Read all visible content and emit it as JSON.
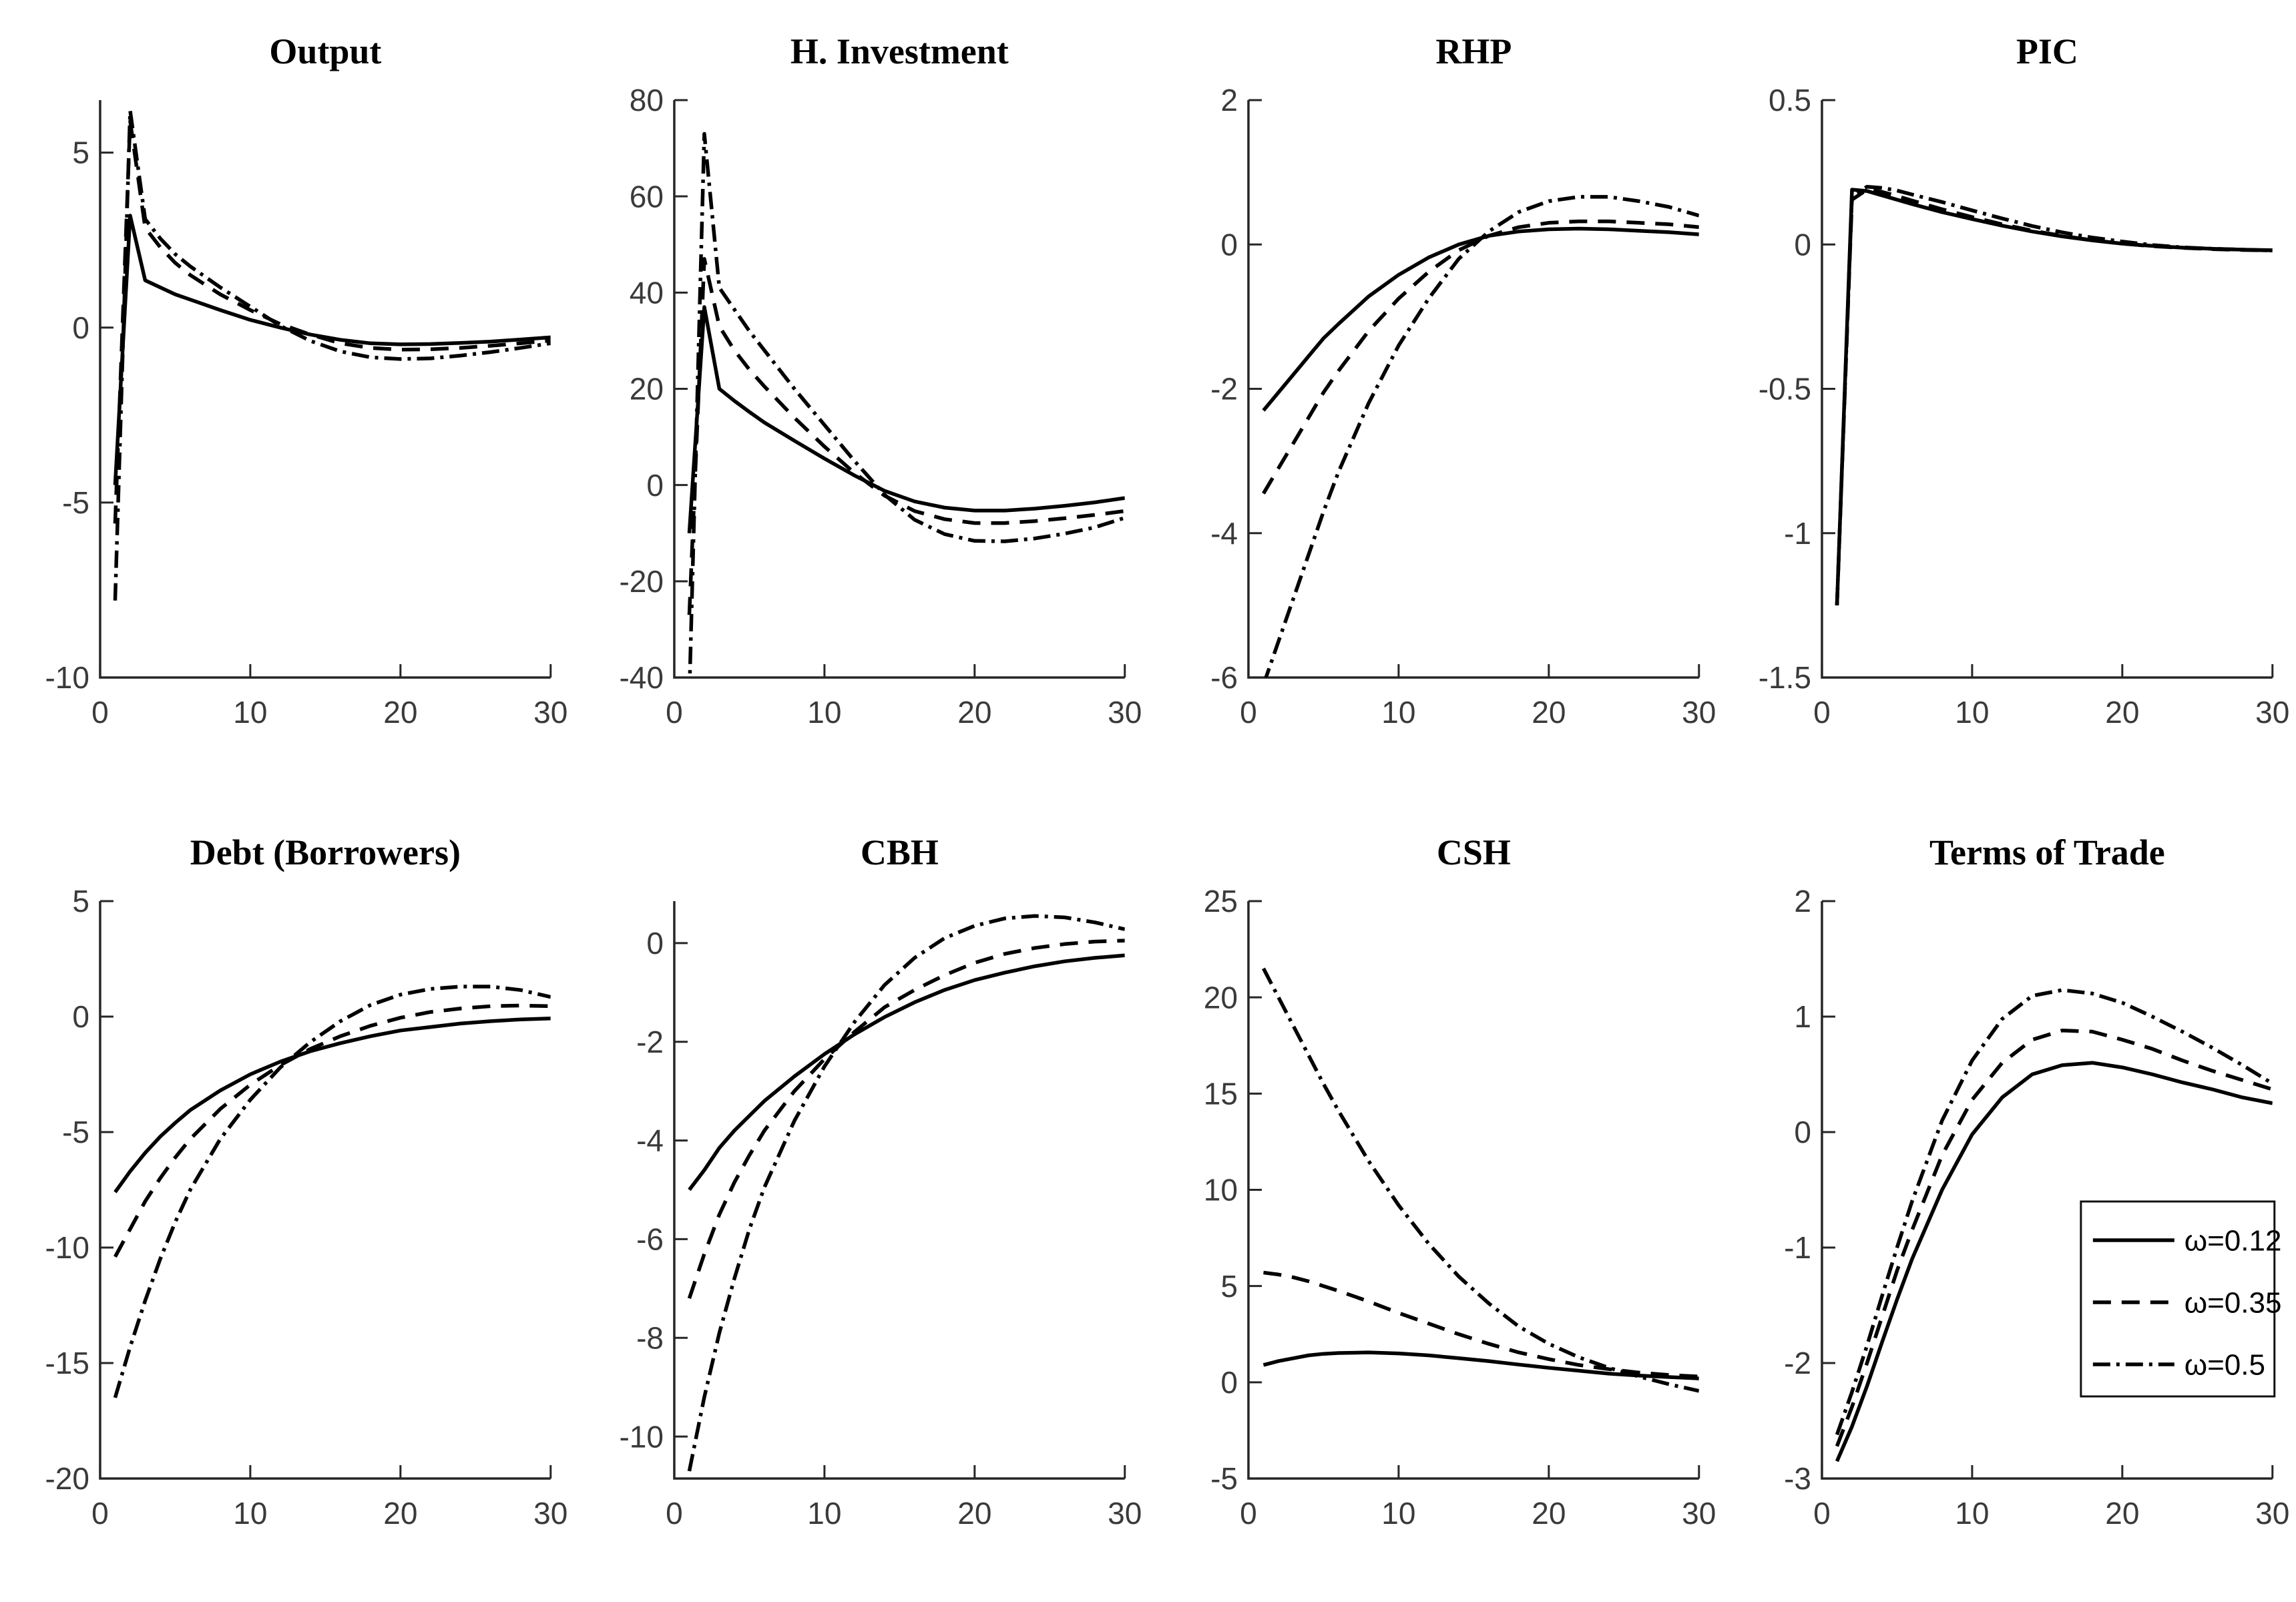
{
  "figure": {
    "background": "#ffffff",
    "line_color": "#000000",
    "axis_color": "#262626",
    "tick_label_color": "#3a3a3a",
    "rows": 2,
    "cols": 4
  },
  "legend": {
    "position": "bottom-right-of-terms-of-trade",
    "entries": [
      {
        "label": "ω=0.12",
        "style": "solid"
      },
      {
        "label": "ω=0.35",
        "style": "dashed"
      },
      {
        "label": "ω=0.5",
        "style": "dashdot"
      }
    ]
  },
  "chart_data": [
    {
      "id": "output",
      "type": "line",
      "title": "Output",
      "xlim": [
        0,
        30
      ],
      "xticks": [
        0,
        10,
        20,
        30
      ],
      "ylim": [
        -10,
        6.5
      ],
      "yticks": [
        5,
        0,
        -5,
        -10
      ],
      "x": [
        1,
        2,
        3,
        4,
        5,
        6,
        8,
        10,
        12,
        14,
        16,
        18,
        20,
        22,
        24,
        26,
        28,
        30
      ],
      "series": [
        {
          "name": "ω=0.12",
          "style": "solid",
          "values": [
            -4.5,
            3.2,
            1.35,
            1.15,
            0.95,
            0.8,
            0.5,
            0.22,
            0.0,
            -0.2,
            -0.35,
            -0.45,
            -0.48,
            -0.47,
            -0.44,
            -0.4,
            -0.34,
            -0.28
          ]
        },
        {
          "name": "ω=0.35",
          "style": "dashed",
          "values": [
            -5.6,
            5.9,
            2.85,
            2.3,
            1.85,
            1.5,
            0.95,
            0.5,
            0.1,
            -0.2,
            -0.45,
            -0.58,
            -0.63,
            -0.62,
            -0.58,
            -0.52,
            -0.45,
            -0.37
          ]
        },
        {
          "name": "ω=0.5",
          "style": "dashdot",
          "values": [
            -7.8,
            6.2,
            3.1,
            2.55,
            2.1,
            1.75,
            1.15,
            0.6,
            0.05,
            -0.38,
            -0.68,
            -0.85,
            -0.9,
            -0.88,
            -0.8,
            -0.7,
            -0.58,
            -0.45
          ]
        }
      ]
    },
    {
      "id": "h-investment",
      "type": "line",
      "title": "H. Investment",
      "xlim": [
        0,
        30
      ],
      "xticks": [
        0,
        10,
        20,
        30
      ],
      "ylim": [
        -40,
        80
      ],
      "yticks": [
        80,
        60,
        40,
        20,
        0,
        -20,
        -40
      ],
      "x": [
        1,
        2,
        3,
        4,
        5,
        6,
        8,
        10,
        12,
        14,
        16,
        18,
        20,
        22,
        24,
        26,
        28,
        30
      ],
      "series": [
        {
          "name": "ω=0.12",
          "style": "solid",
          "values": [
            -10,
            37,
            20,
            17.5,
            15.2,
            13,
            9.2,
            5.5,
            2,
            -1.2,
            -3.4,
            -4.7,
            -5.3,
            -5.3,
            -4.9,
            -4.3,
            -3.6,
            -2.7
          ]
        },
        {
          "name": "ω=0.35",
          "style": "dashed",
          "values": [
            -27,
            47,
            33,
            28,
            24,
            20.5,
            14,
            8,
            2.5,
            -2.2,
            -5.4,
            -7.1,
            -7.9,
            -7.9,
            -7.5,
            -6.9,
            -6.2,
            -5.4
          ]
        },
        {
          "name": "ω=0.5",
          "style": "dashdot",
          "values": [
            -44,
            73,
            41,
            36.5,
            32,
            28,
            20,
            12.5,
            5,
            -2,
            -7.2,
            -10.2,
            -11.6,
            -11.7,
            -11.1,
            -10.1,
            -8.8,
            -6.8
          ]
        }
      ]
    },
    {
      "id": "rhp",
      "type": "line",
      "title": "RHP",
      "xlim": [
        0,
        30
      ],
      "xticks": [
        0,
        10,
        20,
        30
      ],
      "ylim": [
        -6,
        2
      ],
      "yticks": [
        2,
        0,
        -2,
        -4,
        -6
      ],
      "x": [
        1,
        2,
        3,
        4,
        5,
        6,
        8,
        10,
        12,
        14,
        16,
        18,
        20,
        22,
        24,
        26,
        28,
        30
      ],
      "series": [
        {
          "name": "ω=0.12",
          "style": "solid",
          "values": [
            -2.3,
            -2.05,
            -1.8,
            -1.55,
            -1.3,
            -1.1,
            -0.72,
            -0.42,
            -0.18,
            0.0,
            0.12,
            0.18,
            0.21,
            0.22,
            0.21,
            0.19,
            0.17,
            0.14
          ]
        },
        {
          "name": "ω=0.35",
          "style": "dashed",
          "values": [
            -3.45,
            -3.1,
            -2.75,
            -2.4,
            -2.05,
            -1.75,
            -1.2,
            -0.75,
            -0.38,
            -0.08,
            0.12,
            0.24,
            0.3,
            0.32,
            0.32,
            0.3,
            0.28,
            0.24
          ]
        },
        {
          "name": "ω=0.5",
          "style": "dashdot",
          "values": [
            -6.1,
            -5.5,
            -4.9,
            -4.3,
            -3.7,
            -3.15,
            -2.2,
            -1.4,
            -0.75,
            -0.2,
            0.18,
            0.45,
            0.6,
            0.66,
            0.66,
            0.6,
            0.52,
            0.4
          ]
        }
      ]
    },
    {
      "id": "pic",
      "type": "line",
      "title": "PIC",
      "xlim": [
        0,
        30
      ],
      "xticks": [
        0,
        10,
        20,
        30
      ],
      "ylim": [
        -1.5,
        0.5
      ],
      "yticks": [
        0.5,
        0,
        -0.5,
        -1,
        -1.5
      ],
      "x": [
        1,
        2,
        3,
        4,
        5,
        6,
        8,
        10,
        12,
        14,
        16,
        18,
        20,
        22,
        24,
        26,
        28,
        30
      ],
      "series": [
        {
          "name": "ω=0.12",
          "style": "solid",
          "values": [
            -1.25,
            0.19,
            0.185,
            0.17,
            0.155,
            0.14,
            0.112,
            0.088,
            0.065,
            0.045,
            0.028,
            0.014,
            0.003,
            -0.005,
            -0.011,
            -0.015,
            -0.018,
            -0.02
          ]
        },
        {
          "name": "ω=0.35",
          "style": "dashed",
          "values": [
            -1.25,
            0.155,
            0.19,
            0.182,
            0.168,
            0.152,
            0.122,
            0.095,
            0.07,
            0.048,
            0.03,
            0.015,
            0.003,
            -0.006,
            -0.012,
            -0.016,
            -0.019,
            -0.021
          ]
        },
        {
          "name": "ω=0.5",
          "style": "dashdot",
          "values": [
            -1.25,
            0.17,
            0.2,
            0.196,
            0.187,
            0.173,
            0.147,
            0.118,
            0.09,
            0.064,
            0.042,
            0.024,
            0.01,
            -0.002,
            -0.01,
            -0.015,
            -0.018,
            -0.021
          ]
        }
      ]
    },
    {
      "id": "debt-borrowers",
      "type": "line",
      "title": "Debt (Borrowers)",
      "xlim": [
        0,
        30
      ],
      "xticks": [
        0,
        10,
        20,
        30
      ],
      "ylim": [
        -20,
        5
      ],
      "yticks": [
        5,
        0,
        -5,
        -10,
        -15,
        -20
      ],
      "x": [
        1,
        2,
        3,
        4,
        5,
        6,
        8,
        10,
        12,
        14,
        16,
        18,
        20,
        22,
        24,
        26,
        28,
        30
      ],
      "series": [
        {
          "name": "ω=0.12",
          "style": "solid",
          "values": [
            -7.6,
            -6.7,
            -5.9,
            -5.2,
            -4.6,
            -4.05,
            -3.2,
            -2.5,
            -1.95,
            -1.5,
            -1.15,
            -0.85,
            -0.6,
            -0.45,
            -0.3,
            -0.2,
            -0.12,
            -0.08
          ]
        },
        {
          "name": "ω=0.35",
          "style": "dashed",
          "values": [
            -10.4,
            -9.2,
            -8.0,
            -7.0,
            -6.1,
            -5.3,
            -4.0,
            -2.95,
            -2.1,
            -1.4,
            -0.85,
            -0.4,
            -0.05,
            0.2,
            0.35,
            0.45,
            0.48,
            0.45
          ]
        },
        {
          "name": "ω=0.5",
          "style": "dashdot",
          "values": [
            -16.5,
            -14.3,
            -12.3,
            -10.5,
            -8.9,
            -7.5,
            -5.3,
            -3.6,
            -2.2,
            -1.1,
            -0.2,
            0.5,
            0.95,
            1.2,
            1.3,
            1.3,
            1.15,
            0.85
          ]
        }
      ]
    },
    {
      "id": "cbh",
      "type": "line",
      "title": "CBH",
      "xlim": [
        0,
        30
      ],
      "xticks": [
        0,
        10,
        20,
        30
      ],
      "ylim": [
        -10.85,
        0.85
      ],
      "yticks": [
        0,
        -2,
        -4,
        -6,
        -8,
        -10
      ],
      "x": [
        1,
        2,
        3,
        4,
        5,
        6,
        8,
        10,
        12,
        14,
        16,
        18,
        20,
        22,
        24,
        26,
        28,
        30
      ],
      "series": [
        {
          "name": "ω=0.12",
          "style": "solid",
          "values": [
            -5.0,
            -4.6,
            -4.15,
            -3.8,
            -3.5,
            -3.2,
            -2.7,
            -2.25,
            -1.85,
            -1.5,
            -1.2,
            -0.95,
            -0.75,
            -0.6,
            -0.47,
            -0.37,
            -0.3,
            -0.25
          ]
        },
        {
          "name": "ω=0.35",
          "style": "dashed",
          "values": [
            -7.2,
            -6.3,
            -5.5,
            -4.85,
            -4.3,
            -3.8,
            -3.0,
            -2.35,
            -1.8,
            -1.3,
            -0.95,
            -0.65,
            -0.4,
            -0.22,
            -0.1,
            -0.02,
            0.03,
            0.05
          ]
        },
        {
          "name": "ω=0.5",
          "style": "dashdot",
          "values": [
            -10.7,
            -9.2,
            -7.9,
            -6.8,
            -5.8,
            -4.95,
            -3.6,
            -2.5,
            -1.6,
            -0.85,
            -0.3,
            0.1,
            0.35,
            0.5,
            0.55,
            0.52,
            0.42,
            0.28
          ]
        }
      ]
    },
    {
      "id": "csh",
      "type": "line",
      "title": "CSH",
      "xlim": [
        0,
        30
      ],
      "xticks": [
        0,
        10,
        20,
        30
      ],
      "ylim": [
        -5,
        25
      ],
      "yticks": [
        25,
        20,
        15,
        10,
        5,
        0,
        -5
      ],
      "x": [
        1,
        2,
        3,
        4,
        5,
        6,
        8,
        10,
        12,
        14,
        16,
        18,
        20,
        22,
        24,
        26,
        28,
        30
      ],
      "series": [
        {
          "name": "ω=0.12",
          "style": "solid",
          "values": [
            0.9,
            1.1,
            1.25,
            1.4,
            1.48,
            1.52,
            1.55,
            1.5,
            1.4,
            1.25,
            1.1,
            0.92,
            0.75,
            0.6,
            0.45,
            0.35,
            0.27,
            0.2
          ]
        },
        {
          "name": "ω=0.35",
          "style": "dashed",
          "values": [
            5.7,
            5.6,
            5.45,
            5.25,
            5.0,
            4.75,
            4.2,
            3.6,
            3.05,
            2.5,
            2.0,
            1.55,
            1.2,
            0.9,
            0.68,
            0.5,
            0.38,
            0.3
          ]
        },
        {
          "name": "ω=0.5",
          "style": "dashdot",
          "values": [
            21.5,
            20.0,
            18.5,
            17.0,
            15.5,
            14.1,
            11.5,
            9.2,
            7.2,
            5.5,
            4.1,
            2.9,
            2.0,
            1.3,
            0.75,
            0.3,
            -0.1,
            -0.45
          ]
        }
      ]
    },
    {
      "id": "terms-of-trade",
      "type": "line",
      "title": "Terms of Trade",
      "xlim": [
        0,
        30
      ],
      "xticks": [
        0,
        10,
        20,
        30
      ],
      "ylim": [
        -3,
        2
      ],
      "yticks": [
        2,
        1,
        0,
        -1,
        -2,
        -3
      ],
      "legend": {
        "show": true,
        "position": "right-middle"
      },
      "x": [
        1,
        2,
        3,
        4,
        5,
        6,
        8,
        10,
        12,
        14,
        16,
        18,
        20,
        22,
        24,
        26,
        28,
        30
      ],
      "series": [
        {
          "name": "ω=0.12",
          "style": "solid",
          "values": [
            -2.85,
            -2.55,
            -2.2,
            -1.82,
            -1.45,
            -1.1,
            -0.5,
            -0.02,
            0.3,
            0.5,
            0.58,
            0.6,
            0.56,
            0.5,
            0.43,
            0.37,
            0.3,
            0.25
          ]
        },
        {
          "name": "ω=0.35",
          "style": "dashed",
          "values": [
            -2.72,
            -2.38,
            -2.0,
            -1.6,
            -1.2,
            -0.85,
            -0.2,
            0.28,
            0.6,
            0.8,
            0.88,
            0.87,
            0.8,
            0.72,
            0.62,
            0.53,
            0.45,
            0.37
          ]
        },
        {
          "name": "ω=0.5",
          "style": "dashdot",
          "values": [
            -2.62,
            -2.25,
            -1.85,
            -1.42,
            -1.0,
            -0.6,
            0.1,
            0.62,
            0.98,
            1.18,
            1.23,
            1.2,
            1.12,
            1.0,
            0.87,
            0.73,
            0.58,
            0.42
          ]
        }
      ]
    }
  ]
}
